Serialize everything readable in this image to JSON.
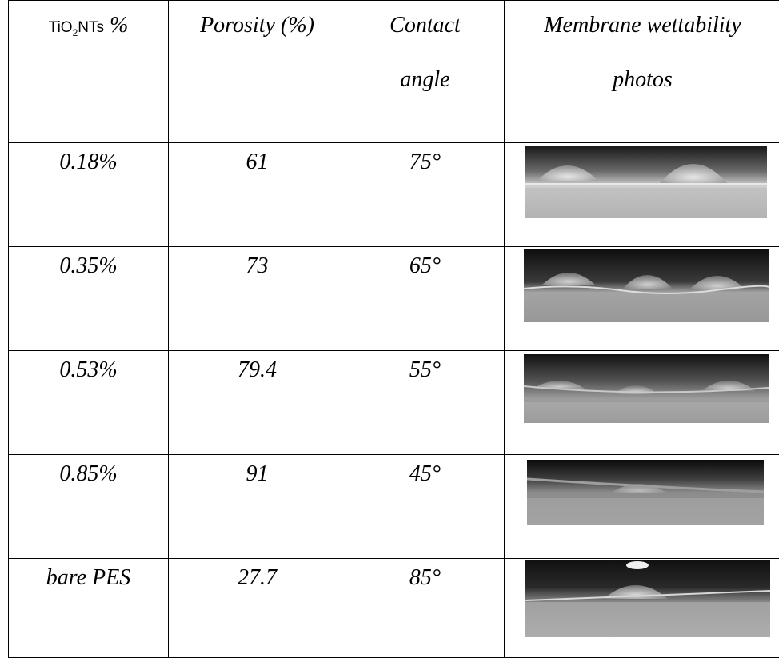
{
  "table": {
    "headers": {
      "col1_prefix": "TiO",
      "col1_sub": "2",
      "col1_suffix": "NTs",
      "col1_percent": "%",
      "col2": "Porosity (%)",
      "col3_line1": "Contact",
      "col3_line2": "angle",
      "col4_line1": "Membrane wettability",
      "col4_line2": "photos"
    },
    "rows": [
      {
        "content": "0.18%",
        "porosity": "61",
        "contact_angle": "75°",
        "photo_icon": "water-droplet-photo",
        "droplet_count": 2
      },
      {
        "content": "0.35%",
        "porosity": "73",
        "contact_angle": "65°",
        "photo_icon": "water-droplet-photo",
        "droplet_count": 3
      },
      {
        "content": "0.53%",
        "porosity": "79.4",
        "contact_angle": "55°",
        "photo_icon": "water-droplet-photo",
        "droplet_count": 3
      },
      {
        "content": "0.85%",
        "porosity": "91",
        "contact_angle": "45°",
        "photo_icon": "water-droplet-photo",
        "droplet_count": 1
      },
      {
        "content": "bare PES",
        "porosity": "27.7",
        "contact_angle": "85°",
        "photo_icon": "water-droplet-photo",
        "droplet_count": 1
      }
    ]
  }
}
